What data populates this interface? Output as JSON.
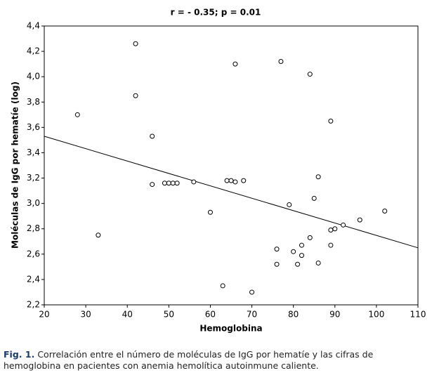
{
  "chart_data": {
    "type": "scatter",
    "title": "r = - 0.35; p = 0.01",
    "x_label": "Hemoglobina",
    "y_label": "Moléculas de IgG por hematíe (log)",
    "x": [
      28,
      33,
      42,
      42,
      46,
      46,
      49,
      50,
      51,
      52,
      56,
      60,
      63,
      64,
      65,
      66,
      66,
      68,
      70,
      76,
      76,
      77,
      79,
      80,
      81,
      82,
      82,
      84,
      84,
      85,
      86,
      86,
      89,
      89,
      89,
      90,
      92,
      96,
      102
    ],
    "y": [
      3.7,
      2.75,
      4.26,
      3.85,
      3.53,
      3.15,
      3.16,
      3.16,
      3.16,
      3.16,
      3.17,
      2.93,
      2.35,
      3.18,
      3.18,
      3.17,
      4.1,
      3.18,
      2.3,
      2.64,
      2.52,
      4.12,
      2.99,
      2.62,
      2.52,
      2.67,
      2.59,
      2.73,
      4.02,
      3.04,
      3.21,
      2.53,
      3.65,
      2.79,
      2.67,
      2.8,
      2.83,
      2.87,
      2.94
    ],
    "trend": {
      "x": [
        20,
        110
      ],
      "y": [
        3.53,
        2.65
      ]
    },
    "xlim": [
      20,
      110
    ],
    "xticks": [
      20,
      30,
      40,
      50,
      60,
      70,
      80,
      90,
      100,
      110
    ],
    "ylim": [
      2.2,
      4.4
    ],
    "yticks": [
      {
        "value": 2.2,
        "label": "2,2"
      },
      {
        "value": 2.4,
        "label": "2,4"
      },
      {
        "value": 2.6,
        "label": "2,6"
      },
      {
        "value": 2.8,
        "label": "2,8"
      },
      {
        "value": 3.0,
        "label": "3,0"
      },
      {
        "value": 3.2,
        "label": "3,2"
      },
      {
        "value": 3.4,
        "label": "3,4"
      },
      {
        "value": 3.6,
        "label": "3,6"
      },
      {
        "value": 3.8,
        "label": "3,8"
      },
      {
        "value": 4.0,
        "label": "4,0"
      },
      {
        "value": 4.2,
        "label": "4,2"
      },
      {
        "value": 4.4,
        "label": "4,4"
      }
    ],
    "caption_label": "Fig. 1.",
    "caption": "Correlación entre el número de moléculas de IgG por hematíe y las cifras de hemoglobina en pacientes con anemia hemolítica autoinmune caliente."
  }
}
